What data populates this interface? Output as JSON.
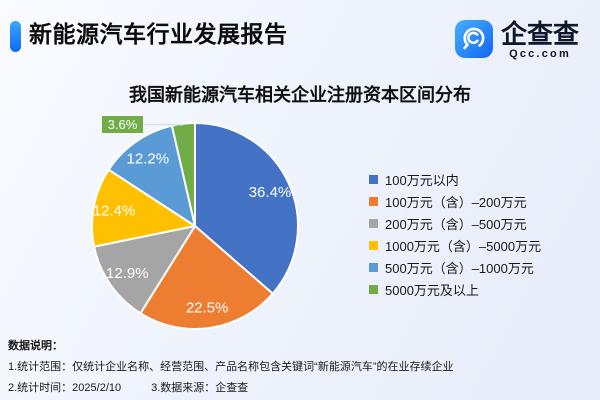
{
  "header": {
    "title": "新能源汽车行业发展报告",
    "logo": {
      "name": "企查查",
      "domain": "Qcc.com"
    }
  },
  "chart_data": {
    "type": "pie",
    "title": "我国新能源汽车相关企业注册资本区间分布",
    "unit": "%",
    "legend_position": "right",
    "label_style": "percent-inside-white",
    "slices": [
      {
        "label": "100万元以内",
        "value": 36.4,
        "display": "36.4%",
        "color": "#4472C4"
      },
      {
        "label": "100万元（含）–200万元",
        "value": 22.5,
        "display": "22.5%",
        "color": "#ED7D31"
      },
      {
        "label": "200万元（含）–500万元",
        "value": 12.9,
        "display": "12.9%",
        "color": "#A5A5A5"
      },
      {
        "label": "1000万元（含）–5000万元",
        "value": 12.4,
        "display": "12.4%",
        "color": "#FFC000"
      },
      {
        "label": "500万元（含）–1000万元",
        "value": 12.2,
        "display": "12.2%",
        "color": "#5B9BD5"
      },
      {
        "label": "5000万元及以上",
        "value": 3.6,
        "display": "3.6%",
        "color": "#70AD47",
        "label_outside": true
      }
    ]
  },
  "notes": {
    "heading": "数据说明：",
    "scope": "1.统计范围：仅统计企业名称、经营范围、产品名称包含关键词“新能源汽车”的在业存续企业",
    "time": "2.统计时间：2025/2/10",
    "source": "3.数据来源：企查查"
  }
}
